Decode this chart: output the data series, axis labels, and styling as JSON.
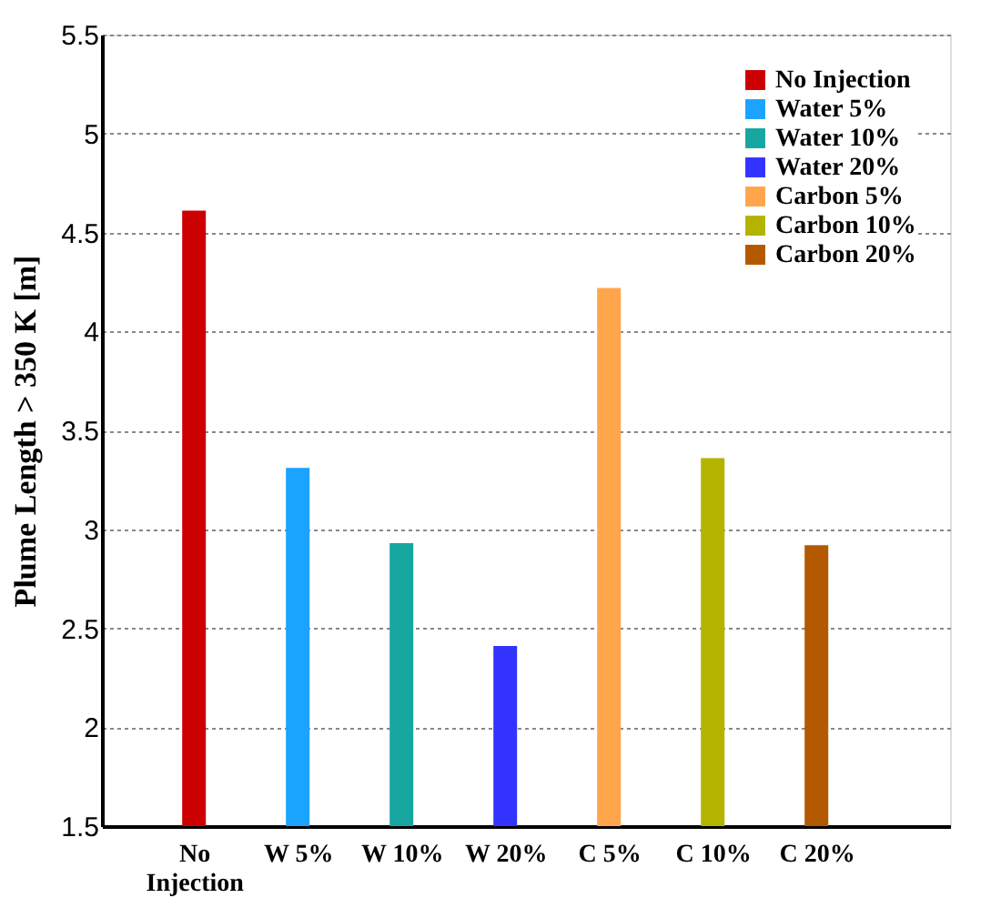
{
  "chart_data": {
    "type": "bar",
    "ylabel": "Plume Length > 350 K [m]",
    "categories": [
      "No Injection",
      "W 5%",
      "W 10%",
      "W 20%",
      "C 5%",
      "C 10%",
      "C 20%"
    ],
    "series": [
      {
        "name": "No Injection",
        "color": "#cc0000",
        "values": [
          4.61,
          null,
          null,
          null,
          null,
          null,
          null
        ]
      },
      {
        "name": "Water 5%",
        "color": "#1aa3ff",
        "values": [
          null,
          3.31,
          null,
          null,
          null,
          null,
          null
        ]
      },
      {
        "name": "Water 10%",
        "color": "#17a6a0",
        "values": [
          null,
          null,
          2.93,
          null,
          null,
          null,
          null
        ]
      },
      {
        "name": "Water 20%",
        "color": "#3333ff",
        "values": [
          null,
          null,
          null,
          2.41,
          null,
          null,
          null
        ]
      },
      {
        "name": "Carbon 5%",
        "color": "#ffa64d",
        "values": [
          null,
          null,
          null,
          null,
          4.22,
          null,
          null
        ]
      },
      {
        "name": "Carbon 10%",
        "color": "#b3b300",
        "values": [
          null,
          null,
          null,
          null,
          null,
          3.36,
          null
        ]
      },
      {
        "name": "Carbon 20%",
        "color": "#b35900",
        "values": [
          null,
          null,
          null,
          null,
          null,
          null,
          2.92
        ]
      }
    ],
    "ylim": [
      1.5,
      5.5
    ],
    "yticks": [
      1.5,
      2,
      2.5,
      3,
      3.5,
      4,
      4.5,
      5,
      5.5
    ],
    "grid": "y",
    "legend": "top right"
  }
}
